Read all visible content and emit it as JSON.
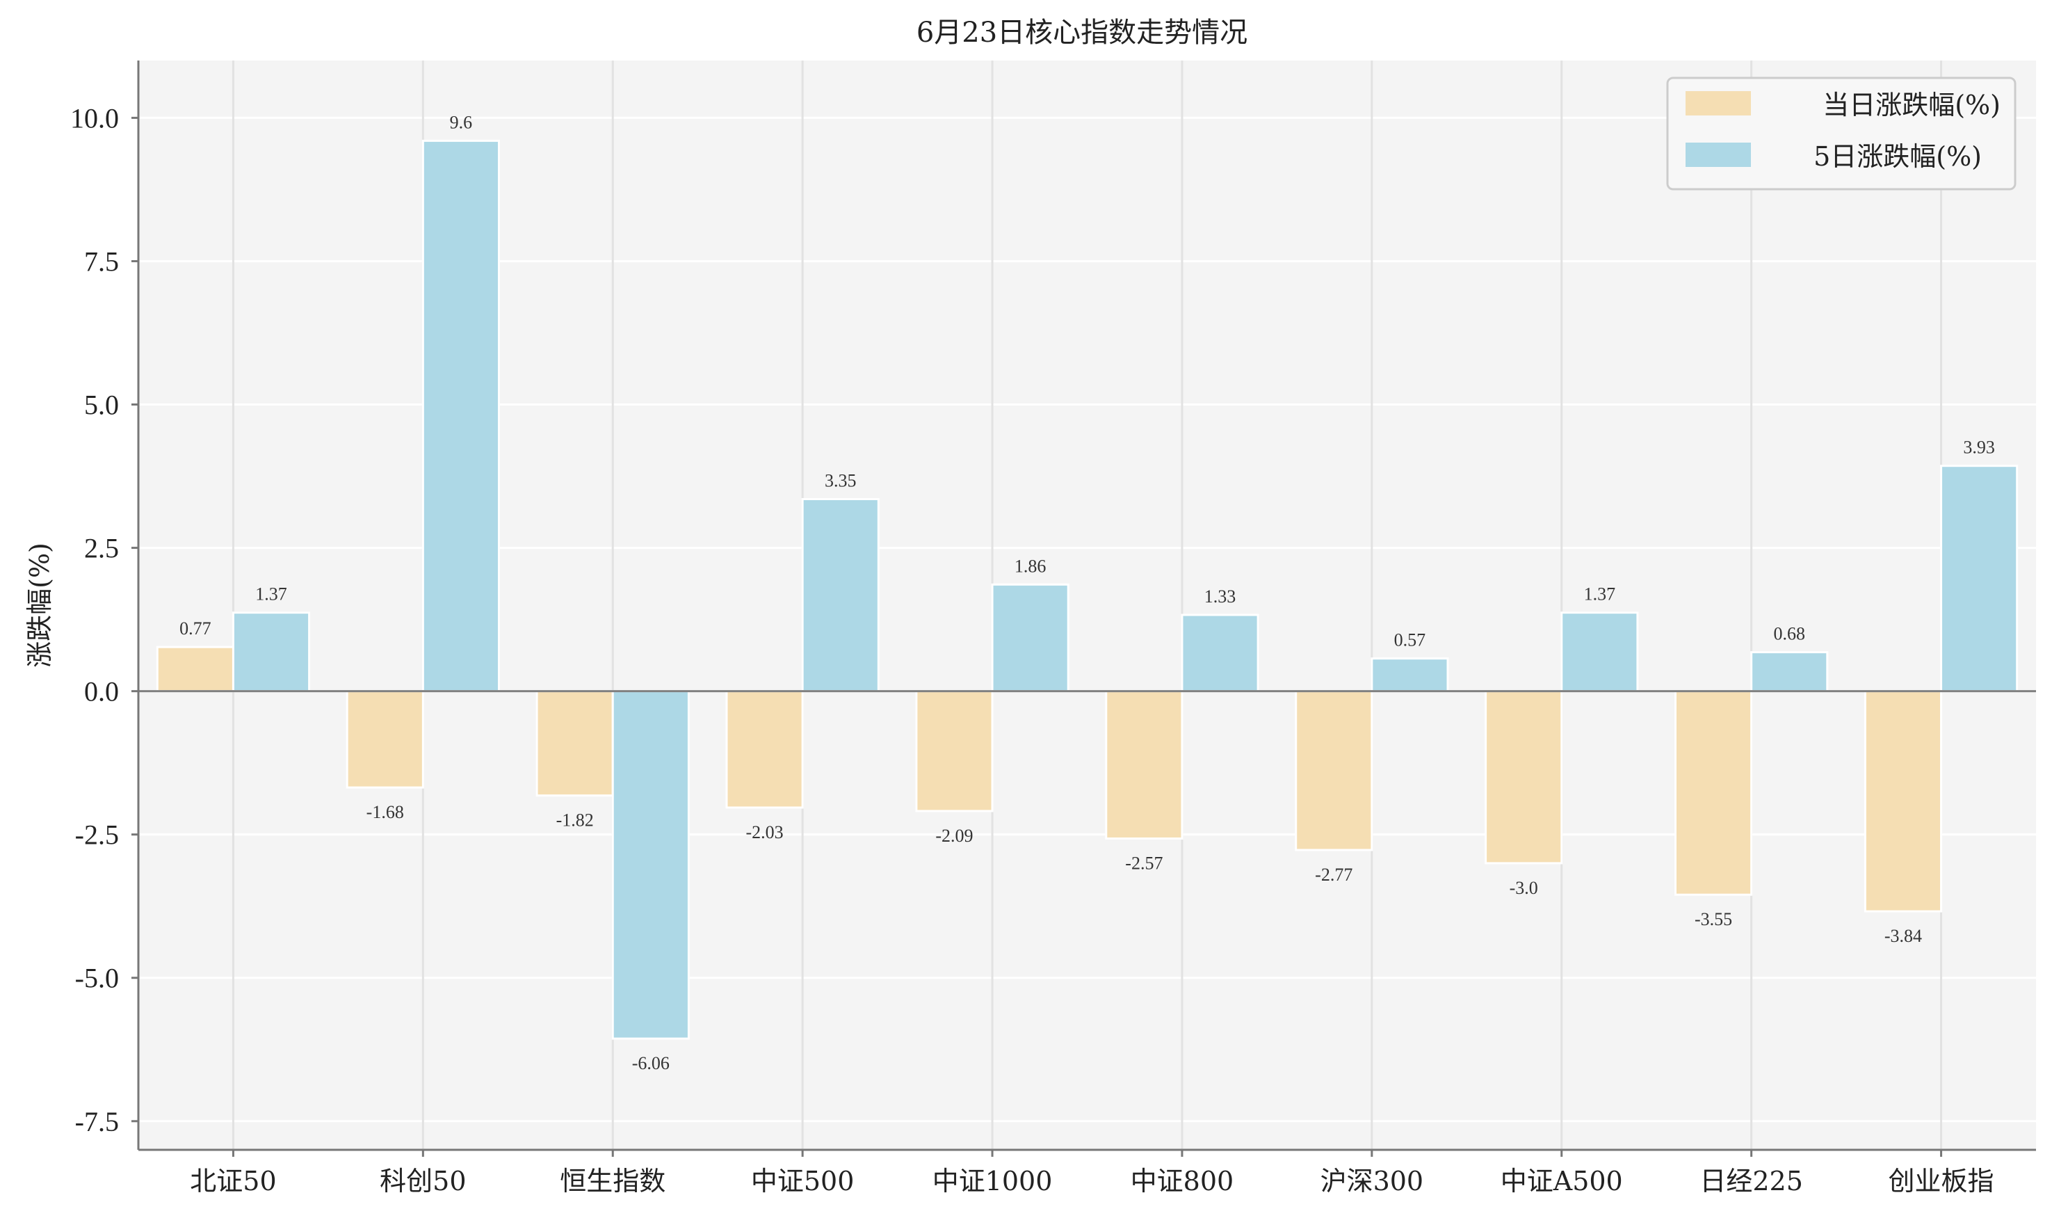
{
  "chart_data": {
    "type": "bar",
    "title": "6月23日核心指数走势情况",
    "xlabel": "",
    "ylabel": "涨跌幅(%)",
    "ylim": [
      -8,
      11
    ],
    "yticks": [
      -7.5,
      -5.0,
      -2.5,
      0.0,
      2.5,
      5.0,
      7.5,
      10.0
    ],
    "ytick_labels": [
      "-7.5",
      "-5.0",
      "-2.5",
      "0.0",
      "2.5",
      "5.0",
      "7.5",
      "10.0"
    ],
    "categories": [
      "北证50",
      "科创50",
      "恒生指数",
      "中证500",
      "中证1000",
      "中证800",
      "沪深300",
      "中证A500",
      "日经225",
      "创业板指"
    ],
    "series": [
      {
        "name": "当日涨跌幅(%)",
        "color": "#f5deb3",
        "values": [
          0.77,
          -1.68,
          -1.82,
          -2.03,
          -2.09,
          -2.57,
          -2.77,
          -3.0,
          -3.55,
          -3.84
        ],
        "labels": [
          "0.77",
          "-1.68",
          "-1.82",
          "-2.03",
          "-2.09",
          "-2.57",
          "-2.77",
          "-3.0",
          "-3.55",
          "-3.84"
        ]
      },
      {
        "name": "5日涨跌幅(%)",
        "color": "#add8e6",
        "values": [
          1.37,
          9.6,
          -6.06,
          3.35,
          1.86,
          1.33,
          0.57,
          1.37,
          0.68,
          3.93
        ],
        "labels": [
          "1.37",
          "9.6",
          "-6.06",
          "3.35",
          "1.86",
          "1.33",
          "0.57",
          "1.37",
          "0.68",
          "3.93"
        ]
      }
    ],
    "grid": true,
    "legend_position": "top-right",
    "background_color": "#f4f4f4",
    "zero_line_color": "#808080"
  }
}
